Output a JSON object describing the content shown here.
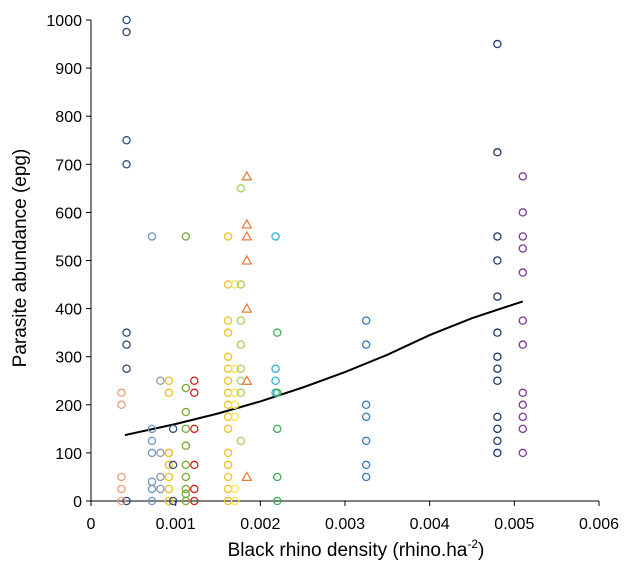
{
  "chart_data": {
    "type": "scatter",
    "xlabel_main": "Black rhino density (rhino.ha",
    "xlabel_sup": "-2",
    "xlabel_end": ")",
    "ylabel": "Parasite abundance (epg)",
    "xlim": [
      0,
      0.006
    ],
    "ylim": [
      0,
      1000
    ],
    "xticks": [
      0,
      0.001,
      0.002,
      0.003,
      0.004,
      0.005,
      0.006
    ],
    "xtick_labels": [
      "0",
      "0.001",
      "0.002",
      "0.003",
      "0.004",
      "0.005",
      "0.006"
    ],
    "yticks": [
      0,
      100,
      200,
      300,
      400,
      500,
      600,
      700,
      800,
      900,
      1000
    ],
    "ytick_labels": [
      "0",
      "100",
      "200",
      "300",
      "400",
      "500",
      "600",
      "700",
      "800",
      "900",
      "1000"
    ],
    "trend_line": {
      "color": "#000000",
      "points": [
        [
          0.0004,
          137
        ],
        [
          0.001,
          160
        ],
        [
          0.0015,
          182
        ],
        [
          0.002,
          207
        ],
        [
          0.0025,
          236
        ],
        [
          0.003,
          268
        ],
        [
          0.0035,
          304
        ],
        [
          0.004,
          345
        ],
        [
          0.0045,
          380
        ],
        [
          0.0051,
          415
        ]
      ]
    },
    "series": [
      {
        "color": "#2e4a7a",
        "marker": "circle",
        "x": 0.00042,
        "y": [
          1000,
          975,
          750,
          700,
          350,
          325,
          275,
          0
        ]
      },
      {
        "color": "#e8a07a",
        "marker": "circle",
        "x": 0.00036,
        "y": [
          225,
          200,
          50,
          25,
          0
        ]
      },
      {
        "color": "#6a96c8",
        "marker": "circle",
        "x": 0.00072,
        "y": [
          550,
          150,
          125,
          100,
          40,
          25,
          0
        ]
      },
      {
        "color": "#8e9aa8",
        "marker": "circle",
        "x": 0.00082,
        "y": [
          250,
          100,
          50,
          25
        ]
      },
      {
        "color": "#f0c020",
        "marker": "circle",
        "x": 0.00092,
        "y": [
          250,
          225,
          100,
          100,
          75,
          50,
          25,
          0
        ]
      },
      {
        "color": "#40507a",
        "marker": "circle",
        "x": 0.00097,
        "y": [
          150,
          75,
          0
        ]
      },
      {
        "color": "#7aaa3a",
        "marker": "circle",
        "x": 0.00112,
        "y": [
          550,
          235,
          185,
          150,
          115,
          75,
          50,
          25,
          15,
          0
        ]
      },
      {
        "color": "#d42020",
        "marker": "circle",
        "x": 0.00122,
        "y": [
          250,
          225,
          150,
          75,
          25,
          0
        ]
      },
      {
        "color": "#f0c020",
        "marker": "circle",
        "x": 0.00162,
        "y": [
          550,
          450,
          375,
          350,
          300,
          275,
          250,
          225,
          200,
          175,
          150,
          100,
          75,
          50,
          25,
          0
        ]
      },
      {
        "color": "#f8e060",
        "marker": "circle",
        "x": 0.0017,
        "y": [
          450,
          275,
          225,
          200,
          175,
          25,
          0
        ]
      },
      {
        "color": "#a8d060",
        "marker": "circle",
        "x": 0.00177,
        "y": [
          650,
          450,
          375,
          325,
          275,
          250,
          225,
          125
        ]
      },
      {
        "color": "#e88040",
        "marker": "triangle",
        "x": 0.00184,
        "y": [
          675,
          575,
          550,
          500,
          400,
          250,
          50
        ]
      },
      {
        "color": "#30b0d8",
        "marker": "circle",
        "x": 0.00218,
        "y": [
          550,
          275,
          250,
          225
        ]
      },
      {
        "color": "#40b050",
        "marker": "circle",
        "x": 0.0022,
        "y": [
          350,
          225,
          150,
          50,
          0
        ]
      },
      {
        "color": "#3a7ab8",
        "marker": "circle",
        "x": 0.00325,
        "y": [
          375,
          325,
          200,
          175,
          125,
          75,
          50
        ]
      },
      {
        "color": "#203a70",
        "marker": "circle",
        "x": 0.0048,
        "y": [
          950,
          725,
          550,
          500,
          425,
          350,
          300,
          275,
          250,
          175,
          150,
          125,
          100
        ]
      },
      {
        "color": "#7a3a9a",
        "marker": "circle",
        "x": 0.0051,
        "y": [
          675,
          600,
          550,
          525,
          475,
          375,
          325,
          225,
          200,
          175,
          150,
          100
        ]
      }
    ]
  }
}
